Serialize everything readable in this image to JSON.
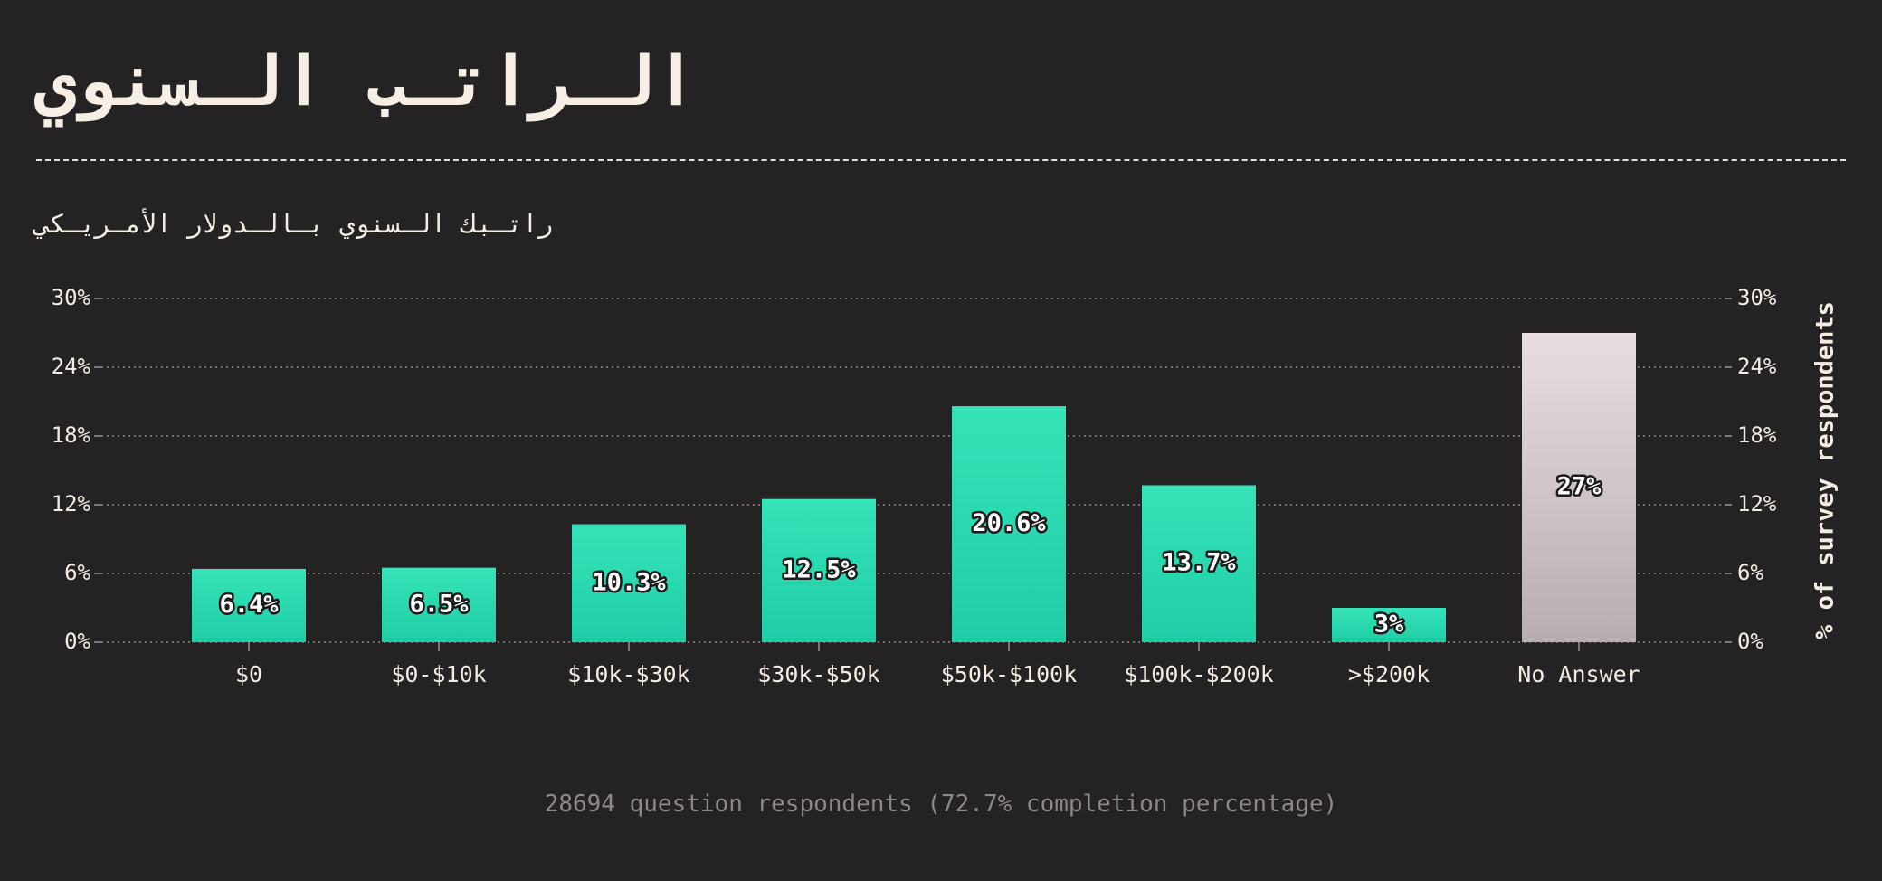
{
  "header": {
    "title": "الـراتـب الـسنوي",
    "subtitle": "راتـبك الـسنوي بـالـدولار الأمـريـكي"
  },
  "footer": {
    "note": "28694 question respondents (72.7% completion percentage)"
  },
  "colors": {
    "background": "#252223",
    "bar_top": "#36e3b9",
    "bar_bottom": "#1fcea6",
    "no_answer_top": "#e8dde0",
    "no_answer_bottom": "#b8aeb0",
    "text": "#f3ece3",
    "muted": "#8d8786"
  },
  "chart_data": {
    "type": "bar",
    "title": "الـراتـب الـسنوي",
    "subtitle": "راتـبك الـسنوي بـالـدولار الأمـريـكي",
    "xlabel": "",
    "ylabel": "% of survey respondents",
    "ylim": [
      0,
      30
    ],
    "yticks": [
      0,
      6,
      12,
      18,
      24,
      30
    ],
    "ytick_labels": [
      "0%",
      "6%",
      "12%",
      "18%",
      "24%",
      "30%"
    ],
    "grid": true,
    "categories": [
      "$0",
      "$0-$10k",
      "$10k-$30k",
      "$30k-$50k",
      "$50k-$100k",
      "$100k-$200k",
      ">$200k",
      "No Answer"
    ],
    "values": [
      6.4,
      6.5,
      10.3,
      12.5,
      20.6,
      13.7,
      3,
      27
    ],
    "value_labels": [
      "6.4%",
      "6.5%",
      "10.3%",
      "12.5%",
      "20.6%",
      "13.7%",
      "3%",
      "27%"
    ],
    "highlight_category": "No Answer"
  }
}
